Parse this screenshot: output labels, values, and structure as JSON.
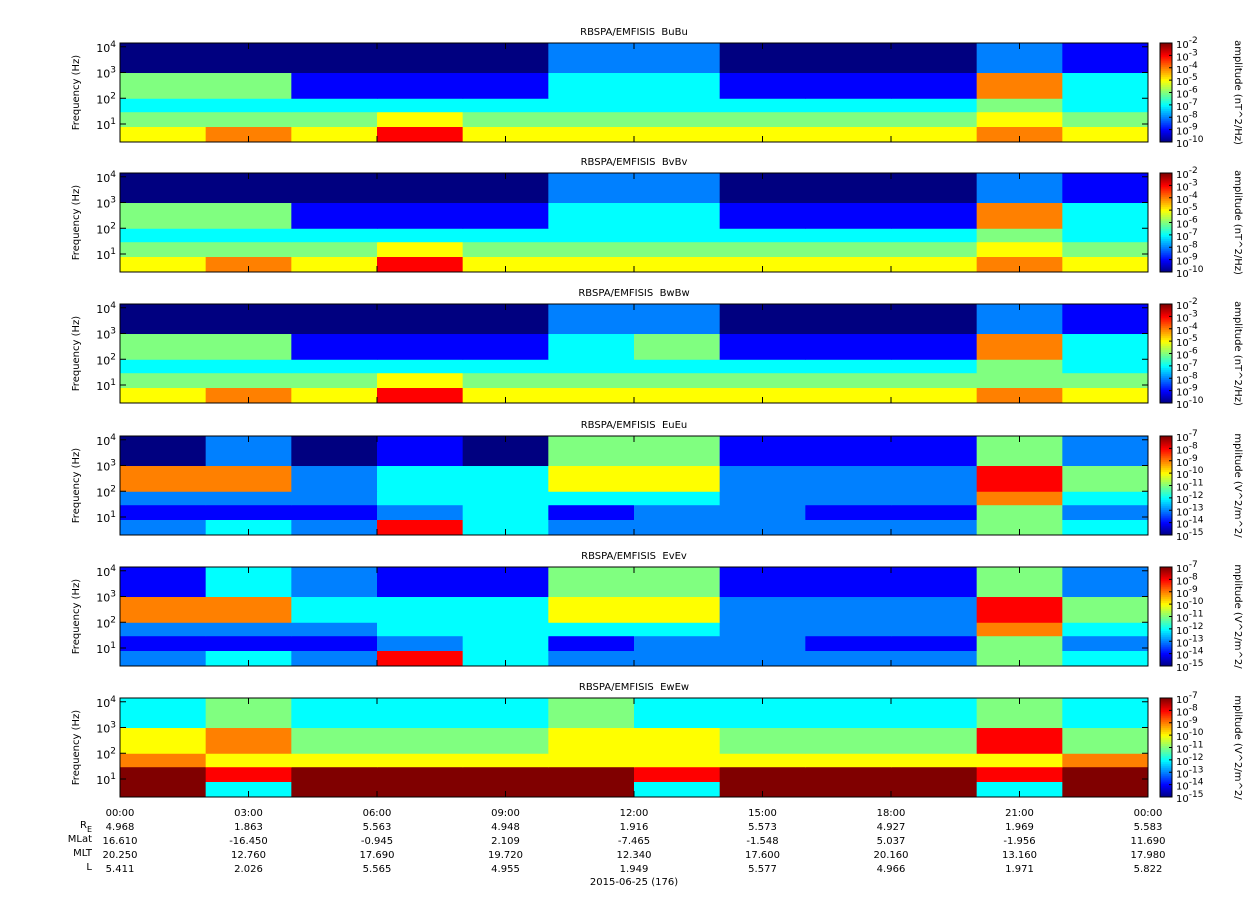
{
  "chart_data": [
    {
      "type": "heatmap",
      "title": "RBSPA/EMFISIS  BuBu",
      "y_label": "Frequency (Hz)",
      "colorbar_label": "amplitude (nT^2/Hz)",
      "xlim": [
        0,
        24
      ],
      "ylim": [
        2,
        14000
      ],
      "yscale": "log",
      "yticks": [
        {
          "value": 10,
          "label": "10^1"
        },
        {
          "value": 100,
          "label": "10^2"
        },
        {
          "value": 1000,
          "label": "10^3"
        },
        {
          "value": 10000,
          "label": "10^4"
        }
      ],
      "x_bins": [
        0,
        2,
        4,
        6,
        8,
        10,
        12,
        14,
        16,
        18,
        20,
        22,
        24
      ],
      "y_bins": [
        2,
        8,
        30,
        100,
        1000,
        14000
      ],
      "z": [
        [
          1e-05,
          0.0001,
          1e-05,
          0.001,
          1e-05,
          1e-05,
          1e-05,
          1e-05,
          1e-05,
          1e-05,
          0.0001,
          1e-05
        ],
        [
          1e-06,
          1e-06,
          1e-06,
          1e-05,
          1e-06,
          1e-06,
          1e-06,
          1e-06,
          1e-06,
          1e-06,
          1e-05,
          1e-06
        ],
        [
          1e-07,
          1e-07,
          1e-07,
          1e-07,
          1e-07,
          1e-07,
          1e-07,
          1e-07,
          1e-07,
          1e-07,
          1e-06,
          1e-07
        ],
        [
          1e-06,
          1e-06,
          1e-09,
          1e-09,
          1e-09,
          1e-07,
          1e-07,
          1e-09,
          1e-09,
          1e-09,
          0.0001,
          1e-07
        ],
        [
          1e-10,
          1e-10,
          1e-10,
          1e-10,
          1e-10,
          1e-08,
          1e-08,
          1e-10,
          1e-10,
          1e-10,
          1e-08,
          1e-09
        ]
      ],
      "zlim": [
        1e-10,
        0.01
      ],
      "zscale": "log",
      "colormap": "jet",
      "zticks": [
        {
          "value": 1e-10,
          "label": "10^-10"
        },
        {
          "value": 1e-09,
          "label": "10^-9"
        },
        {
          "value": 1e-08,
          "label": "10^-8"
        },
        {
          "value": 1e-07,
          "label": "10^-7"
        },
        {
          "value": 1e-06,
          "label": "10^-6"
        },
        {
          "value": 1e-05,
          "label": "10^-5"
        },
        {
          "value": 0.0001,
          "label": "10^-4"
        },
        {
          "value": 0.001,
          "label": "10^-3"
        },
        {
          "value": 0.01,
          "label": "10^-2"
        }
      ]
    },
    {
      "type": "heatmap",
      "title": "RBSPA/EMFISIS  BvBv",
      "y_label": "Frequency (Hz)",
      "colorbar_label": "amplitude (nT^2/Hz)",
      "xlim": [
        0,
        24
      ],
      "ylim": [
        2,
        14000
      ],
      "yscale": "log",
      "yticks": [
        {
          "value": 10,
          "label": "10^1"
        },
        {
          "value": 100,
          "label": "10^2"
        },
        {
          "value": 1000,
          "label": "10^3"
        },
        {
          "value": 10000,
          "label": "10^4"
        }
      ],
      "x_bins": [
        0,
        2,
        4,
        6,
        8,
        10,
        12,
        14,
        16,
        18,
        20,
        22,
        24
      ],
      "y_bins": [
        2,
        8,
        30,
        100,
        1000,
        14000
      ],
      "z": [
        [
          1e-05,
          0.0001,
          1e-05,
          0.001,
          1e-05,
          1e-05,
          1e-05,
          1e-05,
          1e-05,
          1e-05,
          0.0001,
          1e-05
        ],
        [
          1e-06,
          1e-06,
          1e-06,
          1e-05,
          1e-06,
          1e-06,
          1e-06,
          1e-06,
          1e-06,
          1e-06,
          1e-05,
          1e-06
        ],
        [
          1e-07,
          1e-07,
          1e-07,
          1e-07,
          1e-07,
          1e-07,
          1e-07,
          1e-07,
          1e-07,
          1e-07,
          1e-06,
          1e-07
        ],
        [
          1e-06,
          1e-06,
          1e-09,
          1e-09,
          1e-09,
          1e-07,
          1e-07,
          1e-09,
          1e-09,
          1e-09,
          0.0001,
          1e-07
        ],
        [
          1e-10,
          1e-10,
          1e-10,
          1e-10,
          1e-10,
          1e-08,
          1e-08,
          1e-10,
          1e-10,
          1e-10,
          1e-08,
          1e-09
        ]
      ],
      "zlim": [
        1e-10,
        0.01
      ],
      "zscale": "log",
      "colormap": "jet",
      "zticks": [
        {
          "value": 1e-10,
          "label": "10^-10"
        },
        {
          "value": 1e-09,
          "label": "10^-9"
        },
        {
          "value": 1e-08,
          "label": "10^-8"
        },
        {
          "value": 1e-07,
          "label": "10^-7"
        },
        {
          "value": 1e-06,
          "label": "10^-6"
        },
        {
          "value": 1e-05,
          "label": "10^-5"
        },
        {
          "value": 0.0001,
          "label": "10^-4"
        },
        {
          "value": 0.001,
          "label": "10^-3"
        },
        {
          "value": 0.01,
          "label": "10^-2"
        }
      ]
    },
    {
      "type": "heatmap",
      "title": "RBSPA/EMFISIS  BwBw",
      "y_label": "Frequency (Hz)",
      "colorbar_label": "amplitude (nT^2/Hz)",
      "xlim": [
        0,
        24
      ],
      "ylim": [
        2,
        14000
      ],
      "yscale": "log",
      "yticks": [
        {
          "value": 10,
          "label": "10^1"
        },
        {
          "value": 100,
          "label": "10^2"
        },
        {
          "value": 1000,
          "label": "10^3"
        },
        {
          "value": 10000,
          "label": "10^4"
        }
      ],
      "x_bins": [
        0,
        2,
        4,
        6,
        8,
        10,
        12,
        14,
        16,
        18,
        20,
        22,
        24
      ],
      "y_bins": [
        2,
        8,
        30,
        100,
        1000,
        14000
      ],
      "z": [
        [
          1e-05,
          0.0001,
          1e-05,
          0.001,
          1e-05,
          1e-05,
          1e-05,
          1e-05,
          1e-05,
          1e-05,
          0.0001,
          1e-05
        ],
        [
          1e-06,
          1e-06,
          1e-06,
          1e-05,
          1e-06,
          1e-06,
          1e-06,
          1e-06,
          1e-06,
          1e-06,
          1e-06,
          1e-06
        ],
        [
          1e-07,
          1e-07,
          1e-07,
          1e-07,
          1e-07,
          1e-07,
          1e-07,
          1e-07,
          1e-07,
          1e-07,
          1e-06,
          1e-07
        ],
        [
          1e-06,
          1e-06,
          1e-09,
          1e-09,
          1e-09,
          1e-07,
          1e-06,
          1e-09,
          1e-09,
          1e-09,
          0.0001,
          1e-07
        ],
        [
          1e-10,
          1e-10,
          1e-10,
          1e-10,
          1e-10,
          1e-08,
          1e-08,
          1e-10,
          1e-10,
          1e-10,
          1e-08,
          1e-09
        ]
      ],
      "zlim": [
        1e-10,
        0.01
      ],
      "zscale": "log",
      "colormap": "jet",
      "zticks": [
        {
          "value": 1e-10,
          "label": "10^-10"
        },
        {
          "value": 1e-09,
          "label": "10^-9"
        },
        {
          "value": 1e-08,
          "label": "10^-8"
        },
        {
          "value": 1e-07,
          "label": "10^-7"
        },
        {
          "value": 1e-06,
          "label": "10^-6"
        },
        {
          "value": 1e-05,
          "label": "10^-5"
        },
        {
          "value": 0.0001,
          "label": "10^-4"
        },
        {
          "value": 0.001,
          "label": "10^-3"
        },
        {
          "value": 0.01,
          "label": "10^-2"
        }
      ]
    },
    {
      "type": "heatmap",
      "title": "RBSPA/EMFISIS  EuEu",
      "y_label": "Frequency (Hz)",
      "colorbar_label": "mplitude (V^2/m^2/",
      "xlim": [
        0,
        24
      ],
      "ylim": [
        2,
        14000
      ],
      "yscale": "log",
      "yticks": [
        {
          "value": 10,
          "label": "10^1"
        },
        {
          "value": 100,
          "label": "10^2"
        },
        {
          "value": 1000,
          "label": "10^3"
        },
        {
          "value": 10000,
          "label": "10^4"
        }
      ],
      "x_bins": [
        0,
        2,
        4,
        6,
        8,
        10,
        12,
        14,
        16,
        18,
        20,
        22,
        24
      ],
      "y_bins": [
        2,
        8,
        30,
        100,
        1000,
        14000
      ],
      "z": [
        [
          1e-13,
          1e-12,
          1e-13,
          1e-08,
          1e-12,
          1e-13,
          1e-13,
          1e-13,
          1e-13,
          1e-13,
          1e-11,
          1e-12
        ],
        [
          1e-14,
          1e-14,
          1e-14,
          1e-13,
          1e-12,
          1e-14,
          1e-13,
          1e-13,
          1e-14,
          1e-14,
          1e-11,
          1e-13
        ],
        [
          1e-13,
          1e-13,
          1e-13,
          1e-12,
          1e-12,
          1e-12,
          1e-12,
          1e-13,
          1e-13,
          1e-13,
          1e-09,
          1e-12
        ],
        [
          1e-09,
          1e-09,
          1e-13,
          1e-12,
          1e-12,
          1e-10,
          1e-10,
          1e-13,
          1e-13,
          1e-13,
          1e-08,
          1e-11
        ],
        [
          1e-15,
          1e-13,
          1e-15,
          1e-14,
          1e-15,
          1e-11,
          1e-11,
          1e-14,
          1e-14,
          1e-14,
          1e-11,
          1e-13
        ]
      ],
      "zlim": [
        1e-15,
        1e-07
      ],
      "zscale": "log",
      "colormap": "jet",
      "zticks": [
        {
          "value": 1e-15,
          "label": "10^-15"
        },
        {
          "value": 1e-14,
          "label": "10^-14"
        },
        {
          "value": 1e-13,
          "label": "10^-13"
        },
        {
          "value": 1e-12,
          "label": "10^-12"
        },
        {
          "value": 1e-11,
          "label": "10^-11"
        },
        {
          "value": 1e-10,
          "label": "10^-10"
        },
        {
          "value": 1e-09,
          "label": "10^-9"
        },
        {
          "value": 1e-08,
          "label": "10^-8"
        },
        {
          "value": 1e-07,
          "label": "10^-7"
        }
      ]
    },
    {
      "type": "heatmap",
      "title": "RBSPA/EMFISIS  EvEv",
      "y_label": "Frequency (Hz)",
      "colorbar_label": "mplitude (V^2/m^2/",
      "xlim": [
        0,
        24
      ],
      "ylim": [
        2,
        14000
      ],
      "yscale": "log",
      "yticks": [
        {
          "value": 10,
          "label": "10^1"
        },
        {
          "value": 100,
          "label": "10^2"
        },
        {
          "value": 1000,
          "label": "10^3"
        },
        {
          "value": 10000,
          "label": "10^4"
        }
      ],
      "x_bins": [
        0,
        2,
        4,
        6,
        8,
        10,
        12,
        14,
        16,
        18,
        20,
        22,
        24
      ],
      "y_bins": [
        2,
        8,
        30,
        100,
        1000,
        14000
      ],
      "z": [
        [
          1e-13,
          1e-12,
          1e-13,
          1e-08,
          1e-12,
          1e-13,
          1e-13,
          1e-13,
          1e-13,
          1e-13,
          1e-11,
          1e-12
        ],
        [
          1e-14,
          1e-14,
          1e-14,
          1e-13,
          1e-12,
          1e-14,
          1e-13,
          1e-13,
          1e-14,
          1e-14,
          1e-11,
          1e-13
        ],
        [
          1e-13,
          1e-13,
          1e-13,
          1e-12,
          1e-12,
          1e-12,
          1e-12,
          1e-13,
          1e-13,
          1e-13,
          1e-09,
          1e-12
        ],
        [
          1e-09,
          1e-09,
          1e-12,
          1e-12,
          1e-12,
          1e-10,
          1e-10,
          1e-13,
          1e-13,
          1e-13,
          1e-08,
          1e-11
        ],
        [
          1e-14,
          1e-12,
          1e-13,
          1e-14,
          1e-14,
          1e-11,
          1e-11,
          1e-14,
          1e-14,
          1e-14,
          1e-11,
          1e-13
        ]
      ],
      "zlim": [
        1e-15,
        1e-07
      ],
      "zscale": "log",
      "colormap": "jet",
      "zticks": [
        {
          "value": 1e-15,
          "label": "10^-15"
        },
        {
          "value": 1e-14,
          "label": "10^-14"
        },
        {
          "value": 1e-13,
          "label": "10^-13"
        },
        {
          "value": 1e-12,
          "label": "10^-12"
        },
        {
          "value": 1e-11,
          "label": "10^-11"
        },
        {
          "value": 1e-10,
          "label": "10^-10"
        },
        {
          "value": 1e-09,
          "label": "10^-9"
        },
        {
          "value": 1e-08,
          "label": "10^-8"
        },
        {
          "value": 1e-07,
          "label": "10^-7"
        }
      ]
    },
    {
      "type": "heatmap",
      "title": "RBSPA/EMFISIS  EwEw",
      "y_label": "Frequency (Hz)",
      "colorbar_label": "mplitude (V^2/m^2/",
      "xlim": [
        0,
        24
      ],
      "ylim": [
        2,
        14000
      ],
      "yscale": "log",
      "yticks": [
        {
          "value": 10,
          "label": "10^1"
        },
        {
          "value": 100,
          "label": "10^2"
        },
        {
          "value": 1000,
          "label": "10^3"
        },
        {
          "value": 10000,
          "label": "10^4"
        }
      ],
      "x_bins": [
        0,
        2,
        4,
        6,
        8,
        10,
        12,
        14,
        16,
        18,
        20,
        22,
        24
      ],
      "y_bins": [
        2,
        8,
        30,
        100,
        1000,
        14000
      ],
      "z": [
        [
          1e-07,
          1e-12,
          1e-07,
          1e-07,
          1e-07,
          1e-07,
          1e-12,
          1e-07,
          1e-07,
          1e-07,
          1e-12,
          1e-07
        ],
        [
          1e-07,
          1e-08,
          1e-07,
          1e-07,
          1e-07,
          1e-07,
          1e-08,
          1e-07,
          1e-07,
          1e-07,
          1e-08,
          1e-07
        ],
        [
          1e-09,
          1e-10,
          1e-10,
          1e-10,
          1e-10,
          1e-10,
          1e-10,
          1e-10,
          1e-10,
          1e-10,
          1e-10,
          1e-09
        ],
        [
          1e-10,
          1e-09,
          1e-11,
          1e-11,
          1e-11,
          1e-10,
          1e-10,
          1e-11,
          1e-11,
          1e-11,
          1e-08,
          1e-11
        ],
        [
          1e-12,
          1e-11,
          1e-12,
          1e-12,
          1e-12,
          1e-11,
          1e-12,
          1e-12,
          1e-12,
          1e-12,
          1e-11,
          1e-12
        ]
      ],
      "zlim": [
        1e-15,
        1e-07
      ],
      "zscale": "log",
      "colormap": "jet",
      "zticks": [
        {
          "value": 1e-15,
          "label": "10^-15"
        },
        {
          "value": 1e-14,
          "label": "10^-14"
        },
        {
          "value": 1e-13,
          "label": "10^-13"
        },
        {
          "value": 1e-12,
          "label": "10^-12"
        },
        {
          "value": 1e-11,
          "label": "10^-11"
        },
        {
          "value": 1e-10,
          "label": "10^-10"
        },
        {
          "value": 1e-09,
          "label": "10^-9"
        },
        {
          "value": 1e-08,
          "label": "10^-8"
        },
        {
          "value": 1e-07,
          "label": "10^-7"
        }
      ],
      "xticks": [
        {
          "value": 0,
          "label": "00:00"
        },
        {
          "value": 3,
          "label": "03:00"
        },
        {
          "value": 6,
          "label": "06:00"
        },
        {
          "value": 9,
          "label": "09:00"
        },
        {
          "value": 12,
          "label": "12:00"
        },
        {
          "value": 15,
          "label": "15:00"
        },
        {
          "value": 18,
          "label": "18:00"
        },
        {
          "value": 21,
          "label": "21:00"
        },
        {
          "value": 24,
          "label": "00:00"
        }
      ],
      "x_label": "2015-06-25 (176)",
      "ephemeris": [
        {
          "label": "R_E",
          "values": [
            "4.968",
            "1.863",
            "5.563",
            "4.948",
            "1.916",
            "5.573",
            "4.927",
            "1.969",
            "5.583"
          ]
        },
        {
          "label": "MLat",
          "values": [
            "16.610",
            "-16.450",
            "-0.945",
            "2.109",
            "-7.465",
            "-1.548",
            "5.037",
            "-1.956",
            "11.690"
          ]
        },
        {
          "label": "MLT",
          "values": [
            "20.250",
            "12.760",
            "17.690",
            "19.720",
            "12.340",
            "17.600",
            "20.160",
            "13.160",
            "17.980"
          ]
        },
        {
          "label": "L",
          "values": [
            "5.411",
            "2.026",
            "5.565",
            "4.955",
            "1.949",
            "5.577",
            "4.966",
            "1.971",
            "5.822"
          ]
        }
      ]
    }
  ]
}
